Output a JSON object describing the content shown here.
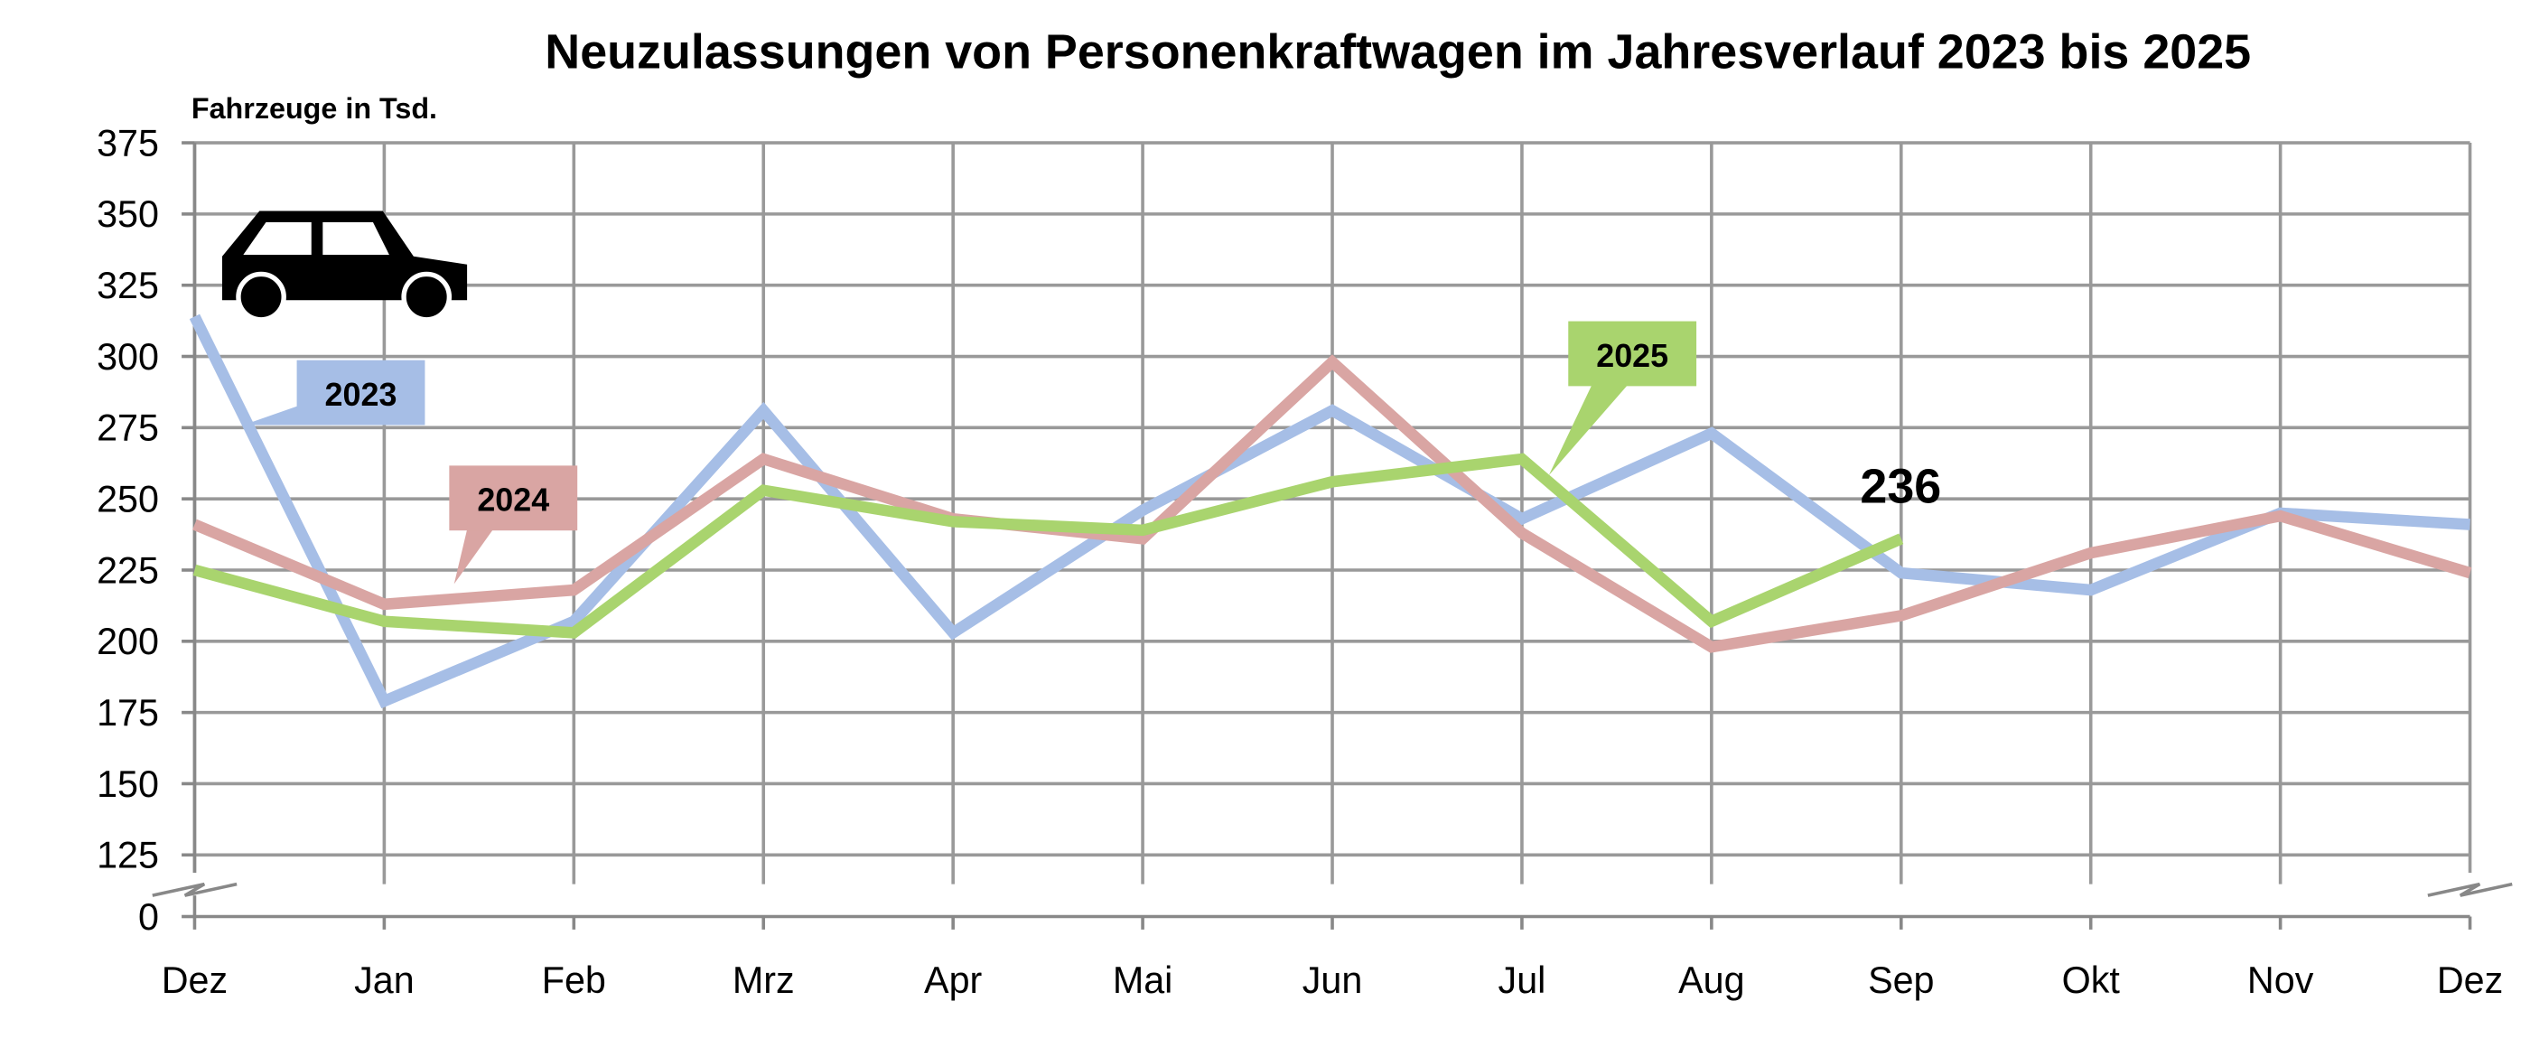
{
  "chart_data": {
    "type": "line",
    "title": "Neuzulassungen von Personenkraftwagen im Jahresverlauf 2023 bis 2025",
    "ylabel": "Fahrzeuge in Tsd.",
    "xlabel": "",
    "categories": [
      "Dez",
      "Jan",
      "Feb",
      "Mrz",
      "Apr",
      "Mai",
      "Jun",
      "Jul",
      "Aug",
      "Sep",
      "Okt",
      "Nov",
      "Dez"
    ],
    "yticks": [
      0,
      125,
      150,
      175,
      200,
      225,
      250,
      275,
      300,
      325,
      350,
      375
    ],
    "ylim": [
      125,
      375
    ],
    "axis_break": true,
    "grid": true,
    "series": [
      {
        "name": "2023",
        "color": "#a6bee6",
        "values": [
          314,
          179,
          207,
          281,
          203,
          246,
          281,
          243,
          273,
          224,
          218,
          245,
          241
        ]
      },
      {
        "name": "2024",
        "color": "#d9a5a3",
        "values": [
          241,
          213,
          218,
          264,
          243,
          236,
          298,
          238,
          198,
          209,
          231,
          244,
          224
        ]
      },
      {
        "name": "2025",
        "color": "#a9d46e",
        "values": [
          225,
          207,
          203,
          253,
          242,
          239,
          256,
          264,
          207,
          236,
          null,
          null,
          null
        ]
      }
    ],
    "annotations": [
      {
        "text": "236",
        "series": "2025",
        "category_index": 9
      }
    ],
    "icon": "car-icon"
  }
}
